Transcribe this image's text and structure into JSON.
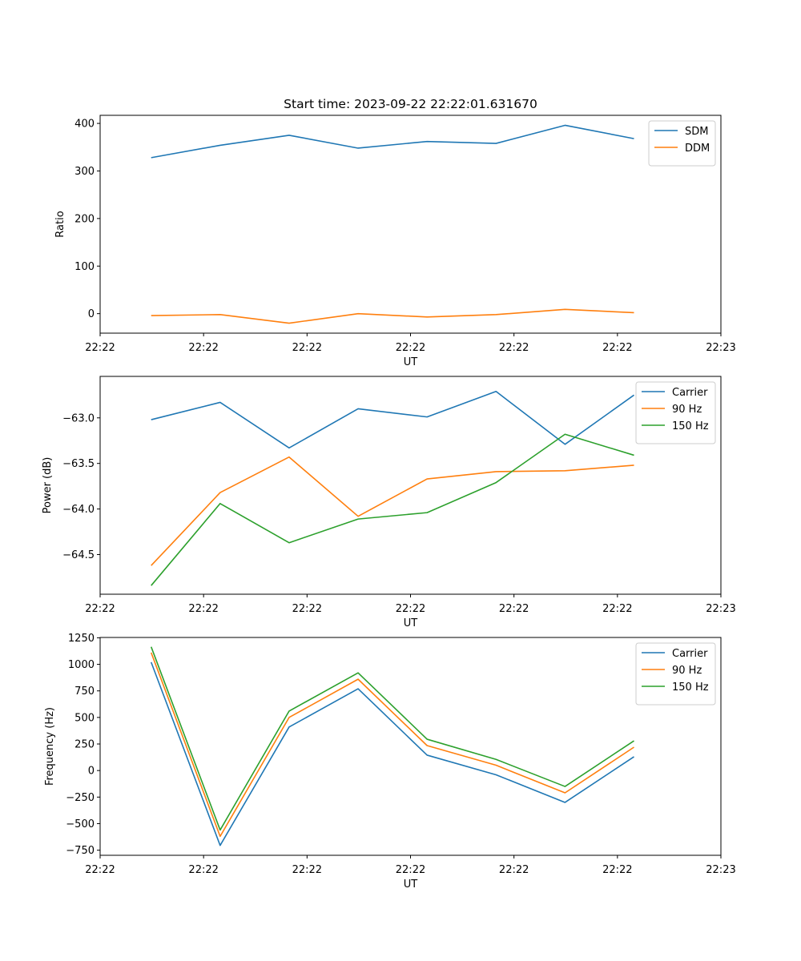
{
  "chart_data": [
    {
      "type": "line",
      "title": "Start time: 2023-09-22 22:22:01.631670",
      "xlabel": "UT",
      "ylabel": "Ratio",
      "x": [
        0,
        1,
        2,
        3,
        4,
        5,
        6,
        7
      ],
      "xlim": [
        -0.74,
        8.26
      ],
      "xticks": [
        -0.74,
        0.76,
        2.26,
        3.76,
        5.26,
        6.76,
        8.26
      ],
      "xticklabels": [
        "22:22",
        "22:22",
        "22:22",
        "22:22",
        "22:22",
        "22:22",
        "22:23"
      ],
      "ylim": [
        -41,
        417
      ],
      "yticks": [
        0,
        100,
        200,
        300,
        400
      ],
      "yticklabels": [
        "0",
        "100",
        "200",
        "300",
        "400"
      ],
      "legend": "top-right",
      "series": [
        {
          "name": "SDM",
          "color": "#1f77b4",
          "values": [
            328,
            354,
            375,
            348,
            362,
            358,
            396,
            368
          ]
        },
        {
          "name": "DDM",
          "color": "#ff7f0e",
          "values": [
            -4,
            -2,
            -20,
            0,
            -7,
            -2,
            9,
            2
          ]
        }
      ]
    },
    {
      "type": "line",
      "xlabel": "UT",
      "ylabel": "Power (dB)",
      "x": [
        0,
        1,
        2,
        3,
        4,
        5,
        6,
        7
      ],
      "xlim": [
        -0.74,
        8.26
      ],
      "xticks": [
        -0.74,
        0.76,
        2.26,
        3.76,
        5.26,
        6.76,
        8.26
      ],
      "xticklabels": [
        "22:22",
        "22:22",
        "22:22",
        "22:22",
        "22:22",
        "22:22",
        "22:23"
      ],
      "ylim": [
        -64.935,
        -62.545
      ],
      "yticks": [
        -63.0,
        -63.5,
        -64.0,
        -64.5
      ],
      "yticklabels": [
        "−63.0",
        "−63.5",
        "−64.0",
        "−64.5"
      ],
      "legend": "top-right",
      "series": [
        {
          "name": "Carrier",
          "color": "#1f77b4",
          "values": [
            -63.02,
            -62.83,
            -63.33,
            -62.9,
            -62.99,
            -62.71,
            -63.29,
            -62.75
          ]
        },
        {
          "name": "90 Hz",
          "color": "#ff7f0e",
          "values": [
            -64.62,
            -63.82,
            -63.43,
            -64.08,
            -63.67,
            -63.59,
            -63.58,
            -63.52
          ]
        },
        {
          "name": "150 Hz",
          "color": "#2ca02c",
          "values": [
            -64.84,
            -63.94,
            -64.37,
            -64.11,
            -64.04,
            -63.71,
            -63.18,
            -63.41
          ]
        }
      ]
    },
    {
      "type": "line",
      "xlabel": "UT",
      "ylabel": "Frequency (Hz)",
      "x": [
        0,
        1,
        2,
        3,
        4,
        5,
        6,
        7
      ],
      "xlim": [
        -0.74,
        8.26
      ],
      "xticks": [
        -0.74,
        0.76,
        2.26,
        3.76,
        5.26,
        6.76,
        8.26
      ],
      "xticklabels": [
        "22:22",
        "22:22",
        "22:22",
        "22:22",
        "22:22",
        "22:22",
        "22:23"
      ],
      "ylim": [
        -798,
        1253
      ],
      "yticks": [
        1250,
        1000,
        750,
        500,
        250,
        0,
        -250,
        -500,
        -750
      ],
      "yticklabels": [
        "1250",
        "1000",
        "750",
        "500",
        "250",
        "0",
        "−250",
        "−500",
        "−750"
      ],
      "legend": "top-right",
      "series": [
        {
          "name": "Carrier",
          "color": "#1f77b4",
          "values": [
            1020,
            -705,
            410,
            770,
            145,
            -40,
            -300,
            130
          ]
        },
        {
          "name": "90 Hz",
          "color": "#ff7f0e",
          "values": [
            1110,
            -620,
            500,
            860,
            235,
            50,
            -210,
            220
          ]
        },
        {
          "name": "150 Hz",
          "color": "#2ca02c",
          "values": [
            1165,
            -560,
            560,
            920,
            295,
            105,
            -150,
            280
          ]
        }
      ]
    }
  ]
}
